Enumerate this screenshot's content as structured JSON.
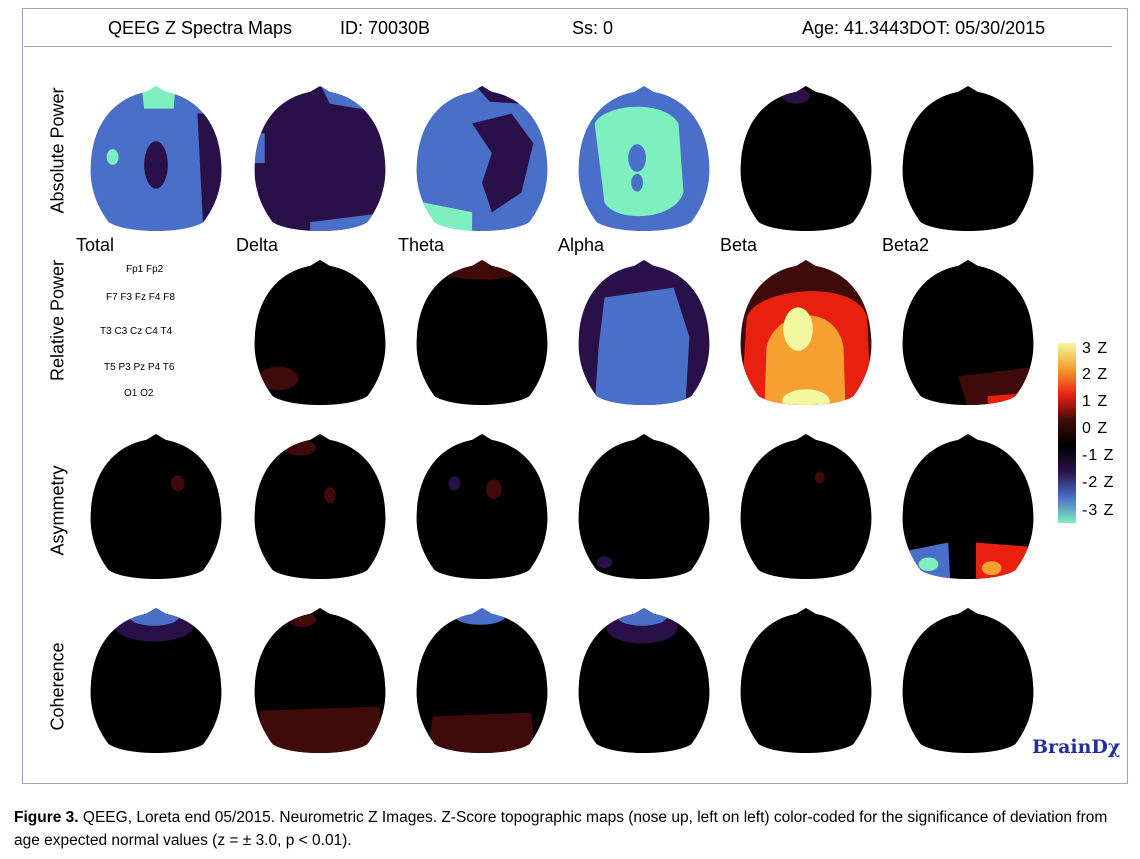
{
  "header": {
    "title": "QEEG Z Spectra Maps",
    "id": "ID: 70030B",
    "ss": "Ss: 0",
    "age": "Age: 41.3443DOT: 05/30/2015"
  },
  "row_labels": [
    "Absolute Power",
    "Relative Power",
    "Asymmetry",
    "Coherence"
  ],
  "band_labels": [
    "Total",
    "Delta",
    "Theta",
    "Alpha",
    "Beta",
    "Beta2"
  ],
  "electrodes": {
    "line1": "Fp1 Fp2",
    "line2": "F7 F3 Fz F4 F8",
    "line3": "T3 C3 Cz C4 T4",
    "line4": "T5 P3 Pz P4 T6",
    "line5": "O1 O2"
  },
  "colorbar": {
    "labels": [
      "3 Z",
      "2 Z",
      "1 Z",
      "0 Z",
      "-1 Z",
      "-2 Z",
      "-3 Z"
    ],
    "colors": [
      "#f2f7a0",
      "#f5a030",
      "#e82010",
      "#400a0a",
      "#000000",
      "#2a1048",
      "#4a6fc8",
      "#7ef0c0"
    ]
  },
  "brand": "BrainDχ",
  "caption": {
    "figure_label": "Figure 3.",
    "text": " QEEG, Loreta end 05/2015. Neurometric Z Images. Z-Score topographic maps (nose up, left on left) color-coded for the significance of deviation from age expected normal values (z = ± 3.0, p < 0.01)."
  }
}
